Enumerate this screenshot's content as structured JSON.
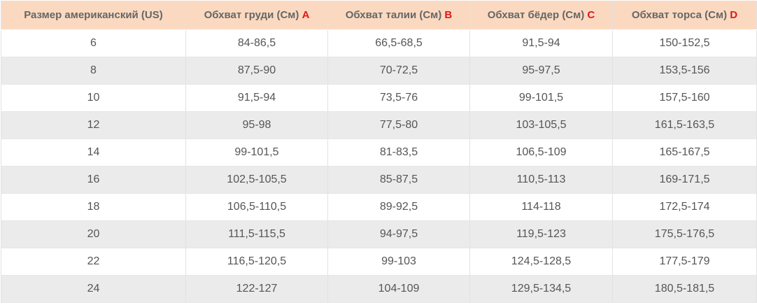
{
  "table": {
    "header": [
      {
        "text": "Размер американский (US)"
      },
      {
        "text": "Обхват груди (См)",
        "letter": "A"
      },
      {
        "text": "Обхват талии (См)",
        "letter": "B"
      },
      {
        "text": "Обхват бёдер (См)",
        "letter": "C"
      },
      {
        "text": "Обхват торса (См)",
        "letter": "D"
      }
    ],
    "rows": [
      [
        "6",
        "84-86,5",
        "66,5-68,5",
        "91,5-94",
        "150-152,5"
      ],
      [
        "8",
        "87,5-90",
        "70-72,5",
        "95-97,5",
        "153,5-156"
      ],
      [
        "10",
        "91,5-94",
        "73,5-76",
        "99-101,5",
        "157,5-160"
      ],
      [
        "12",
        "95-98",
        "77,5-80",
        "103-105,5",
        "161,5-163,5"
      ],
      [
        "14",
        "99-101,5",
        "81-83,5",
        "106,5-109",
        "165-167,5"
      ],
      [
        "16",
        "102,5-105,5",
        "85-87,5",
        "110,5-113",
        "169-171,5"
      ],
      [
        "18",
        "106,5-110,5",
        "89-92,5",
        "114-118",
        "172,5-174"
      ],
      [
        "20",
        "111,5-115,5",
        "94-97,5",
        "119,5-123",
        "175,5-176,5"
      ],
      [
        "22",
        "116,5-120,5",
        "99-103",
        "124,5-128,5",
        "177,5-179"
      ],
      [
        "24",
        "122-127",
        "104-109",
        "129,5-134,5",
        "180,5-181,5"
      ]
    ]
  }
}
